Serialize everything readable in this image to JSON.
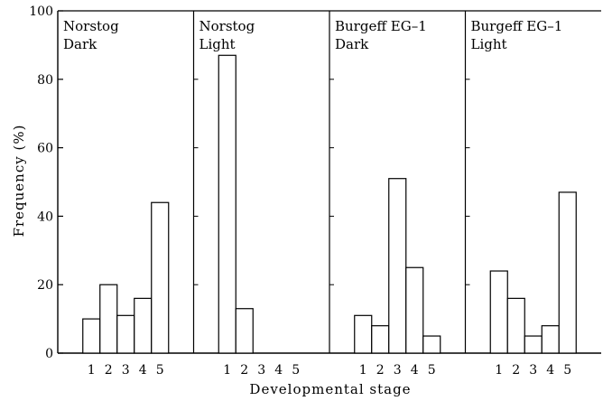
{
  "chart_data": {
    "type": "bar",
    "ylabel": "Frequency (%)",
    "xlabel": "Developmental stage",
    "ylim": [
      0,
      100
    ],
    "yticks": [
      "0",
      "20",
      "40",
      "60",
      "80",
      "100"
    ],
    "categories": [
      "1",
      "2",
      "3",
      "4",
      "5"
    ],
    "grid": false,
    "panels": [
      {
        "label_lines": [
          "Norstog",
          "Dark"
        ],
        "values": [
          10,
          20,
          11,
          16,
          44
        ]
      },
      {
        "label_lines": [
          "Norstog",
          "Light"
        ],
        "values": [
          87,
          13,
          0,
          0,
          0
        ]
      },
      {
        "label_lines": [
          "Burgeff EG–1",
          "Dark"
        ],
        "values": [
          11,
          8,
          51,
          25,
          5
        ]
      },
      {
        "label_lines": [
          "Burgeff EG–1",
          "Light"
        ],
        "values": [
          24,
          16,
          5,
          8,
          47
        ]
      }
    ]
  }
}
